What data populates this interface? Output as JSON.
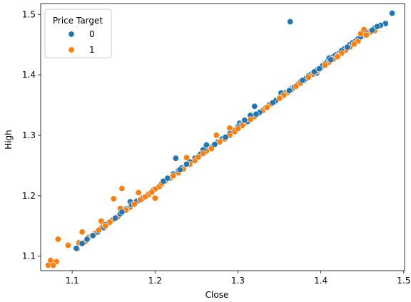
{
  "chart_data": {
    "type": "scatter",
    "xlabel": "Close",
    "ylabel": "High",
    "xlim": [
      1.062,
      1.501
    ],
    "ylim": [
      1.076,
      1.518
    ],
    "xticks": [
      "1.1",
      "1.2",
      "1.3",
      "1.4",
      "1.5"
    ],
    "yticks": [
      "1.1",
      "1.2",
      "1.3",
      "1.4",
      "1.5"
    ],
    "grid": false,
    "legend": {
      "title": "Price Target",
      "placement": "top-left"
    },
    "series": [
      {
        "name": "0",
        "color": "#1f77b4",
        "points": [
          [
            1.105,
            1.113
          ],
          [
            1.112,
            1.121
          ],
          [
            1.118,
            1.128
          ],
          [
            1.125,
            1.134
          ],
          [
            1.131,
            1.14
          ],
          [
            1.138,
            1.147
          ],
          [
            1.145,
            1.155
          ],
          [
            1.148,
            1.159
          ],
          [
            1.152,
            1.163
          ],
          [
            1.158,
            1.17
          ],
          [
            1.165,
            1.178
          ],
          [
            1.172,
            1.185
          ],
          [
            1.178,
            1.191
          ],
          [
            1.185,
            1.196
          ],
          [
            1.192,
            1.203
          ],
          [
            1.198,
            1.209
          ],
          [
            1.205,
            1.216
          ],
          [
            1.21,
            1.224
          ],
          [
            1.215,
            1.229
          ],
          [
            1.222,
            1.236
          ],
          [
            1.228,
            1.241
          ],
          [
            1.225,
            1.262
          ],
          [
            1.232,
            1.246
          ],
          [
            1.238,
            1.252
          ],
          [
            1.242,
            1.256
          ],
          [
            1.248,
            1.262
          ],
          [
            1.255,
            1.269
          ],
          [
            1.258,
            1.276
          ],
          [
            1.262,
            1.284
          ],
          [
            1.268,
            1.28
          ],
          [
            1.272,
            1.285
          ],
          [
            1.276,
            1.289
          ],
          [
            1.281,
            1.294
          ],
          [
            1.285,
            1.297
          ],
          [
            1.29,
            1.303
          ],
          [
            1.295,
            1.308
          ],
          [
            1.3,
            1.314
          ],
          [
            1.302,
            1.32
          ],
          [
            1.305,
            1.318
          ],
          [
            1.308,
            1.325
          ],
          [
            1.312,
            1.323
          ],
          [
            1.315,
            1.333
          ],
          [
            1.318,
            1.33
          ],
          [
            1.32,
            1.348
          ],
          [
            1.322,
            1.335
          ],
          [
            1.326,
            1.338
          ],
          [
            1.33,
            1.342
          ],
          [
            1.334,
            1.346
          ],
          [
            1.338,
            1.351
          ],
          [
            1.342,
            1.354
          ],
          [
            1.346,
            1.358
          ],
          [
            1.35,
            1.362
          ],
          [
            1.352,
            1.37
          ],
          [
            1.355,
            1.366
          ],
          [
            1.358,
            1.371
          ],
          [
            1.362,
            1.374
          ],
          [
            1.365,
            1.378
          ],
          [
            1.368,
            1.38
          ],
          [
            1.372,
            1.384
          ],
          [
            1.375,
            1.388
          ],
          [
            1.378,
            1.391
          ],
          [
            1.382,
            1.394
          ],
          [
            1.385,
            1.398
          ],
          [
            1.388,
            1.401
          ],
          [
            1.392,
            1.405
          ],
          [
            1.395,
            1.408
          ],
          [
            1.398,
            1.41
          ],
          [
            1.402,
            1.415
          ],
          [
            1.405,
            1.418
          ],
          [
            1.408,
            1.422
          ],
          [
            1.41,
            1.428
          ],
          [
            1.412,
            1.425
          ],
          [
            1.415,
            1.43
          ],
          [
            1.418,
            1.433
          ],
          [
            1.422,
            1.436
          ],
          [
            1.425,
            1.44
          ],
          [
            1.428,
            1.443
          ],
          [
            1.432,
            1.446
          ],
          [
            1.435,
            1.45
          ],
          [
            1.438,
            1.453
          ],
          [
            1.442,
            1.456
          ],
          [
            1.445,
            1.46
          ],
          [
            1.448,
            1.463
          ],
          [
            1.452,
            1.466
          ],
          [
            1.455,
            1.468
          ],
          [
            1.458,
            1.471
          ],
          [
            1.462,
            1.474
          ],
          [
            1.465,
            1.477
          ],
          [
            1.468,
            1.48
          ],
          [
            1.472,
            1.482
          ],
          [
            1.478,
            1.485
          ],
          [
            1.486,
            1.502
          ],
          [
            1.363,
            1.488
          ],
          [
            1.16,
            1.173
          ],
          [
            1.17,
            1.19
          ],
          [
            1.14,
            1.152
          ],
          [
            1.23,
            1.243
          ],
          [
            1.26,
            1.272
          ],
          [
            1.345,
            1.356
          ],
          [
            1.395,
            1.403
          ]
        ]
      },
      {
        "name": "1",
        "color": "#ff7f0e",
        "points": [
          [
            1.071,
            1.085
          ],
          [
            1.074,
            1.093
          ],
          [
            1.077,
            1.085
          ],
          [
            1.081,
            1.091
          ],
          [
            1.083,
            1.128
          ],
          [
            1.095,
            1.118
          ],
          [
            1.106,
            1.112
          ],
          [
            1.108,
            1.122
          ],
          [
            1.112,
            1.14
          ],
          [
            1.116,
            1.124
          ],
          [
            1.12,
            1.131
          ],
          [
            1.124,
            1.134
          ],
          [
            1.128,
            1.138
          ],
          [
            1.132,
            1.143
          ],
          [
            1.136,
            1.148
          ],
          [
            1.14,
            1.15
          ],
          [
            1.145,
            1.156
          ],
          [
            1.15,
            1.161
          ],
          [
            1.155,
            1.165
          ],
          [
            1.158,
            1.179
          ],
          [
            1.16,
            1.212
          ],
          [
            1.165,
            1.176
          ],
          [
            1.17,
            1.181
          ],
          [
            1.175,
            1.186
          ],
          [
            1.18,
            1.205
          ],
          [
            1.182,
            1.193
          ],
          [
            1.188,
            1.198
          ],
          [
            1.192,
            1.202
          ],
          [
            1.196,
            1.206
          ],
          [
            1.2,
            1.211
          ],
          [
            1.205,
            1.215
          ],
          [
            1.208,
            1.22
          ],
          [
            1.212,
            1.224
          ],
          [
            1.218,
            1.229
          ],
          [
            1.222,
            1.233
          ],
          [
            1.228,
            1.238
          ],
          [
            1.234,
            1.244
          ],
          [
            1.238,
            1.263
          ],
          [
            1.242,
            1.252
          ],
          [
            1.248,
            1.258
          ],
          [
            1.252,
            1.264
          ],
          [
            1.258,
            1.27
          ],
          [
            1.262,
            1.274
          ],
          [
            1.268,
            1.278
          ],
          [
            1.274,
            1.3
          ],
          [
            1.278,
            1.289
          ],
          [
            1.284,
            1.294
          ],
          [
            1.29,
            1.3
          ],
          [
            1.296,
            1.306
          ],
          [
            1.3,
            1.311
          ],
          [
            1.305,
            1.316
          ],
          [
            1.31,
            1.321
          ],
          [
            1.315,
            1.326
          ],
          [
            1.32,
            1.331
          ],
          [
            1.325,
            1.336
          ],
          [
            1.33,
            1.341
          ],
          [
            1.335,
            1.346
          ],
          [
            1.34,
            1.351
          ],
          [
            1.345,
            1.356
          ],
          [
            1.35,
            1.361
          ],
          [
            1.355,
            1.366
          ],
          [
            1.36,
            1.371
          ],
          [
            1.365,
            1.376
          ],
          [
            1.37,
            1.381
          ],
          [
            1.375,
            1.386
          ],
          [
            1.38,
            1.391
          ],
          [
            1.385,
            1.396
          ],
          [
            1.39,
            1.401
          ],
          [
            1.395,
            1.406
          ],
          [
            1.4,
            1.411
          ],
          [
            1.405,
            1.416
          ],
          [
            1.41,
            1.421
          ],
          [
            1.415,
            1.426
          ],
          [
            1.42,
            1.431
          ],
          [
            1.425,
            1.436
          ],
          [
            1.43,
            1.441
          ],
          [
            1.435,
            1.446
          ],
          [
            1.44,
            1.451
          ],
          [
            1.445,
            1.456
          ],
          [
            1.448,
            1.468
          ],
          [
            1.452,
            1.475
          ],
          [
            1.455,
            1.466
          ],
          [
            1.46,
            1.471
          ],
          [
            1.465,
            1.473
          ],
          [
            1.15,
            1.195
          ],
          [
            1.135,
            1.158
          ],
          [
            1.2,
            1.196
          ],
          [
            1.29,
            1.312
          ],
          [
            1.34,
            1.352
          ],
          [
            1.42,
            1.43
          ]
        ]
      }
    ]
  }
}
